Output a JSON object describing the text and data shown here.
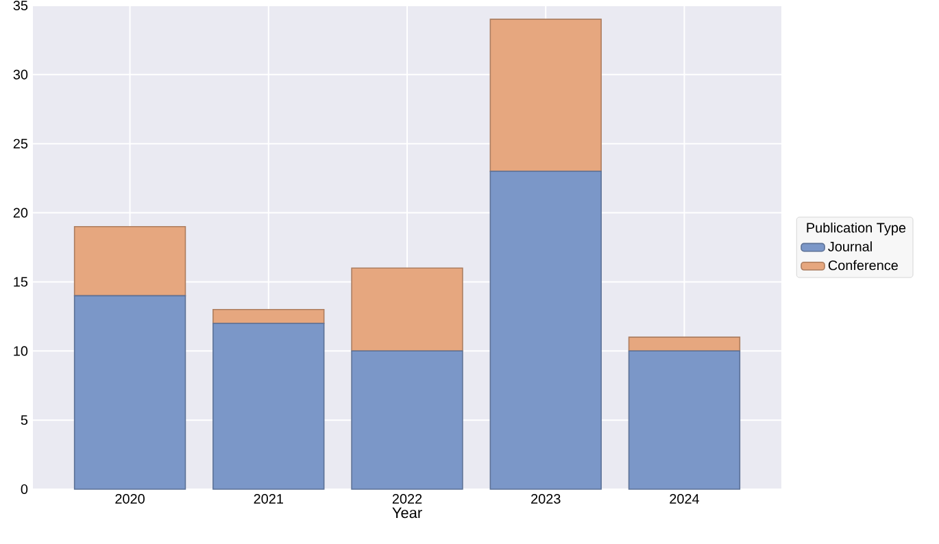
{
  "chart_data": {
    "type": "bar",
    "stacked": true,
    "xlabel": "Year",
    "legend_title": "Publication Type",
    "categories": [
      "2020",
      "2021",
      "2022",
      "2023",
      "2024"
    ],
    "series": [
      {
        "name": "Journal",
        "color": "#7b97c8",
        "values": [
          14,
          12,
          10,
          23,
          10
        ]
      },
      {
        "name": "Conference",
        "color": "#e6a77f",
        "values": [
          5,
          1,
          6,
          11,
          1
        ]
      }
    ],
    "ylim": [
      0,
      35
    ],
    "yticks": [
      0,
      5,
      10,
      15,
      20,
      25,
      30,
      35
    ],
    "grid": true,
    "legend": "right"
  }
}
